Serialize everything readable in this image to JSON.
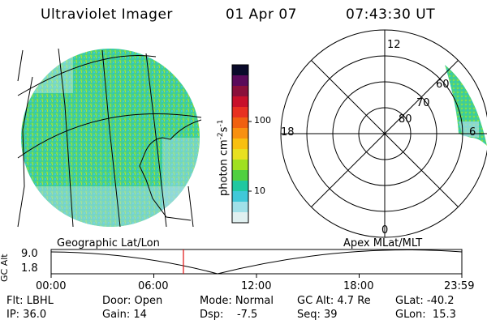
{
  "header": {
    "instrument": "Ultraviolet Imager",
    "date": "01 Apr 07",
    "time": "07:43:30 UT"
  },
  "colorbar": {
    "label": "photon cm",
    "label_exp1": "-2",
    "label_s": "s",
    "label_exp2": "-1",
    "ticks": [
      "100",
      "10"
    ],
    "colors": [
      "#0a0a2a",
      "#5a0a5a",
      "#8a0f3a",
      "#c8102a",
      "#e83020",
      "#f06010",
      "#f89010",
      "#f8c010",
      "#e8e020",
      "#a0e020",
      "#50d040",
      "#20c8a0",
      "#40c8d8",
      "#a0e0e8",
      "#e0f0f0"
    ]
  },
  "polar": {
    "mlt_labels": [
      "12",
      "18",
      "6",
      "0"
    ],
    "lat_labels": [
      "60",
      "70",
      "80"
    ]
  },
  "timeline": {
    "left_label": "Geographic Lat/Lon",
    "right_label": "Apex MLat/MLT",
    "y_label": "GC Alt",
    "y_ticks": [
      "9.0",
      "1.8"
    ],
    "x_ticks": [
      "00:00",
      "06:00",
      "12:00",
      "18:00",
      "23:59"
    ],
    "marker_time": "07:43:30",
    "marker_color": "#e01010"
  },
  "footer": {
    "flt": "Flt: LBHL",
    "ip": "IP: 36.0",
    "door": "Door: Open",
    "gain": "Gain: 14",
    "mode": "Mode: Normal",
    "dsp": "Dsp:    -7.5",
    "gcalt": "GC Alt: 4.7 Re",
    "seq": "Seq: 39",
    "glat": "GLat: -40.2",
    "glon": "GLon:  15.3"
  }
}
